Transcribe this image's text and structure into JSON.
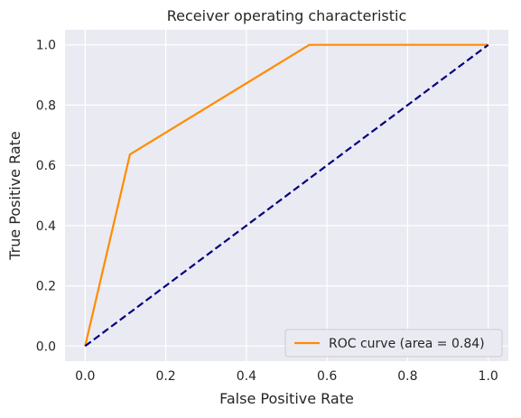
{
  "chart_data": {
    "type": "line",
    "title": "Receiver operating characteristic",
    "xlabel": "False Positive Rate",
    "ylabel": "True Positive Rate",
    "xlim": [
      -0.05,
      1.05
    ],
    "ylim": [
      -0.05,
      1.05
    ],
    "xticks": [
      0.0,
      0.2,
      0.4,
      0.6,
      0.8,
      1.0
    ],
    "yticks": [
      0.0,
      0.2,
      0.4,
      0.6,
      0.8,
      1.0
    ],
    "xtick_labels": [
      "0.0",
      "0.2",
      "0.4",
      "0.6",
      "0.8",
      "1.0"
    ],
    "ytick_labels": [
      "0.0",
      "0.2",
      "0.4",
      "0.6",
      "0.8",
      "1.0"
    ],
    "grid": true,
    "legend_position": "lower-right",
    "series": [
      {
        "name": "ROC curve (area = 0.84)",
        "color": "#ff8c00",
        "style": "solid",
        "x": [
          0.0,
          0.111,
          0.556,
          1.0
        ],
        "y": [
          0.0,
          0.636,
          1.0,
          1.0
        ]
      },
      {
        "color": "#000080",
        "style": "dashed",
        "x": [
          0.0,
          1.0
        ],
        "y": [
          0.0,
          1.0
        ]
      }
    ]
  }
}
